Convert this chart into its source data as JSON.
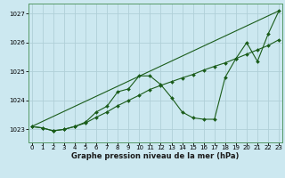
{
  "title": "Graphe pression niveau de la mer (hPa)",
  "bg_color": "#cce8f0",
  "grid_color": "#b0cfd8",
  "line_color": "#1a5c1a",
  "x_ticks": [
    0,
    1,
    2,
    3,
    4,
    5,
    6,
    7,
    8,
    9,
    10,
    11,
    12,
    13,
    14,
    15,
    16,
    17,
    18,
    19,
    20,
    21,
    22,
    23
  ],
  "y_ticks": [
    1023,
    1024,
    1025,
    1026,
    1027
  ],
  "ylim": [
    1022.55,
    1027.35
  ],
  "xlim": [
    -0.3,
    23.3
  ],
  "series_main": {
    "x": [
      0,
      1,
      2,
      3,
      4,
      5,
      6,
      7,
      8,
      9,
      10,
      11,
      12,
      13,
      14,
      15,
      16,
      17,
      18,
      19,
      20,
      21,
      22,
      23
    ],
    "y": [
      1023.1,
      1023.05,
      1022.95,
      1023.0,
      1023.1,
      1023.25,
      1023.6,
      1023.8,
      1024.3,
      1024.4,
      1024.85,
      1024.85,
      1024.55,
      1024.1,
      1023.6,
      1023.4,
      1023.35,
      1023.35,
      1024.8,
      1025.45,
      1026.0,
      1025.35,
      1026.3,
      1027.1
    ]
  },
  "series_smooth": {
    "x": [
      0,
      1,
      2,
      3,
      4,
      5,
      6,
      7,
      8,
      9,
      10,
      11,
      12,
      13,
      14,
      15,
      16,
      17,
      18,
      19,
      20,
      21,
      22,
      23
    ],
    "y": [
      1023.1,
      1023.05,
      1022.95,
      1023.0,
      1023.1,
      1023.22,
      1023.42,
      1023.6,
      1023.82,
      1024.0,
      1024.18,
      1024.38,
      1024.52,
      1024.65,
      1024.78,
      1024.9,
      1025.05,
      1025.18,
      1025.3,
      1025.45,
      1025.6,
      1025.75,
      1025.9,
      1026.1
    ]
  },
  "series_line": {
    "x": [
      0,
      23
    ],
    "y": [
      1023.1,
      1027.1
    ]
  }
}
